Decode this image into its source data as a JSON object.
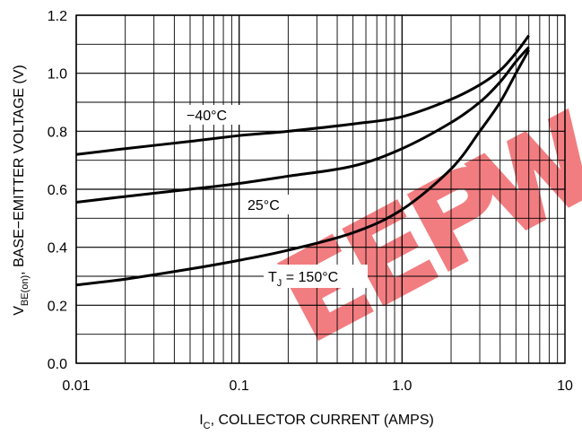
{
  "chart_data": {
    "type": "line",
    "x_scale": "log",
    "grid": true,
    "xlim": [
      0.01,
      10
    ],
    "ylim": [
      0.0,
      1.2
    ],
    "x_ticks": [
      "0.01",
      "0.1",
      "1.0",
      "10"
    ],
    "y_ticks": [
      "0.0",
      "0.2",
      "0.4",
      "0.6",
      "0.8",
      "1.0",
      "1.2"
    ],
    "xlabel": {
      "main": "I",
      "sub": "C",
      "rest": ", COLLECTOR CURRENT (AMPS)"
    },
    "ylabel": {
      "main": "V",
      "sub": "BE(on)",
      "rest": ", BASE−EMITTER VOLTAGE (V)"
    },
    "series": [
      {
        "name": "−40°C",
        "x": [
          0.01,
          0.02,
          0.05,
          0.1,
          0.2,
          0.5,
          1.0,
          2.0,
          3.0,
          4.0,
          5.0,
          6.0
        ],
        "y": [
          0.72,
          0.74,
          0.765,
          0.785,
          0.8,
          0.825,
          0.85,
          0.91,
          0.96,
          1.01,
          1.07,
          1.13
        ]
      },
      {
        "name": "25°C",
        "x": [
          0.01,
          0.02,
          0.05,
          0.1,
          0.2,
          0.5,
          1.0,
          2.0,
          3.0,
          4.0,
          5.0,
          6.0
        ],
        "y": [
          0.555,
          0.575,
          0.6,
          0.62,
          0.645,
          0.68,
          0.74,
          0.83,
          0.9,
          0.97,
          1.04,
          1.09
        ]
      },
      {
        "name": "T_J = 150°C",
        "x": [
          0.01,
          0.02,
          0.05,
          0.1,
          0.2,
          0.5,
          1.0,
          2.0,
          3.0,
          4.0,
          5.0,
          6.0
        ],
        "y": [
          0.27,
          0.29,
          0.325,
          0.355,
          0.39,
          0.45,
          0.53,
          0.67,
          0.8,
          0.9,
          1.0,
          1.08
        ]
      }
    ],
    "curve_labels": {
      "minus40": "−40°C",
      "c25": "25°C",
      "tj_main": "T",
      "tj_sub": "J",
      "tj_rest": " = 150°C"
    },
    "watermark": {
      "text": "EEPW",
      "color": "#e8141a"
    }
  }
}
